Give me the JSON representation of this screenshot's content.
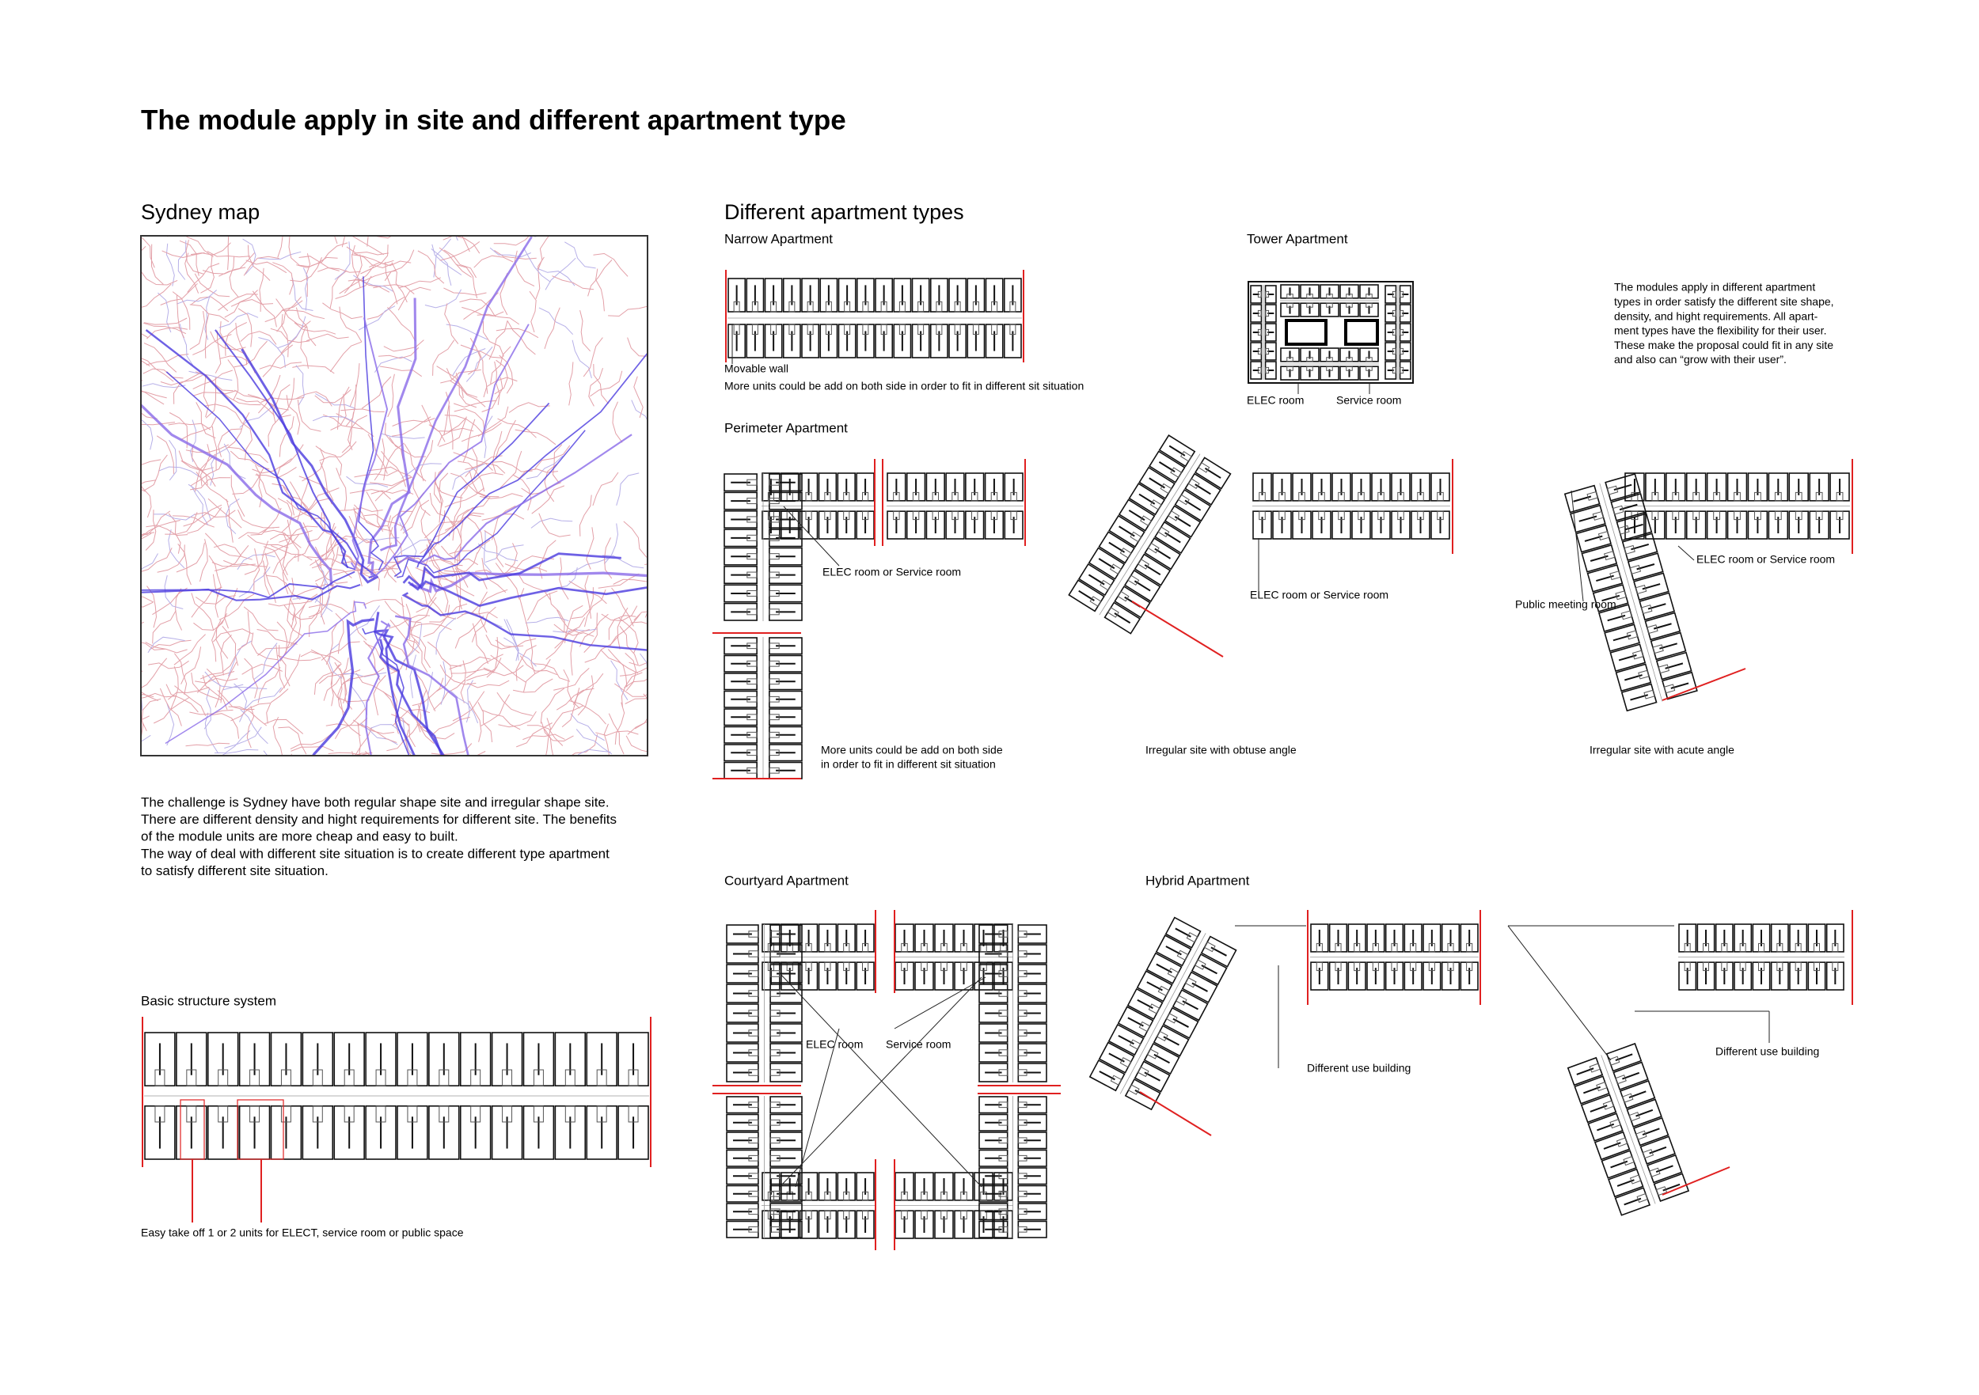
{
  "title": "The module apply in site and different apartment type",
  "sydney_map": {
    "heading": "Sydney map"
  },
  "challenge": {
    "lines": [
      "The challenge is Sydney have both regular shape site and irregular shape site.",
      "There are different density and hight requirements for different site. The benefits",
      "of the module units are more cheap and easy to built.",
      "The way of deal with different site situation is to create different type apartment",
      "to satisfy different site situation."
    ]
  },
  "structure": {
    "heading": "Basic structure system",
    "note": "Easy take off 1 or 2 units for ELECT, service room or public space"
  },
  "apartment_types": {
    "heading": "Different apartment types",
    "narrow": {
      "heading": "Narrow Apartment",
      "labels": [
        "Movable wall",
        "More units could be add on both side in order to fit in different sit situation"
      ]
    },
    "tower": {
      "heading": "Tower Apartment",
      "labels": [
        "ELEC room",
        "Service room"
      ]
    },
    "summary": {
      "lines": [
        "The modules apply in different apartment",
        "types in order satisfy the different site shape,",
        "density, and hight requirements. All apart-",
        "ment types have the flexibility for their user.",
        "These make the proposal could fit in any site",
        "and also can “grow with their user”."
      ]
    },
    "perimeter": {
      "heading": "Perimeter Apartment",
      "labels": [
        "ELEC room or Service room"
      ],
      "note_lines": [
        "More units could be add on both side",
        "in order to fit in different sit situation"
      ]
    },
    "obtuse": {
      "labels": [
        "ELEC room or Service room"
      ],
      "caption": "Irregular site with obtuse angle"
    },
    "acute": {
      "labels": [
        "ELEC room or Service room",
        "Public meeting room"
      ],
      "caption": "Irregular site with acute angle"
    },
    "courtyard": {
      "heading": "Courtyard Apartment",
      "labels": [
        "ELEC room",
        "Service room"
      ]
    },
    "hybrid": {
      "heading": "Hybrid Apartment",
      "labels": [
        "Different use building",
        "Different use building"
      ]
    }
  }
}
